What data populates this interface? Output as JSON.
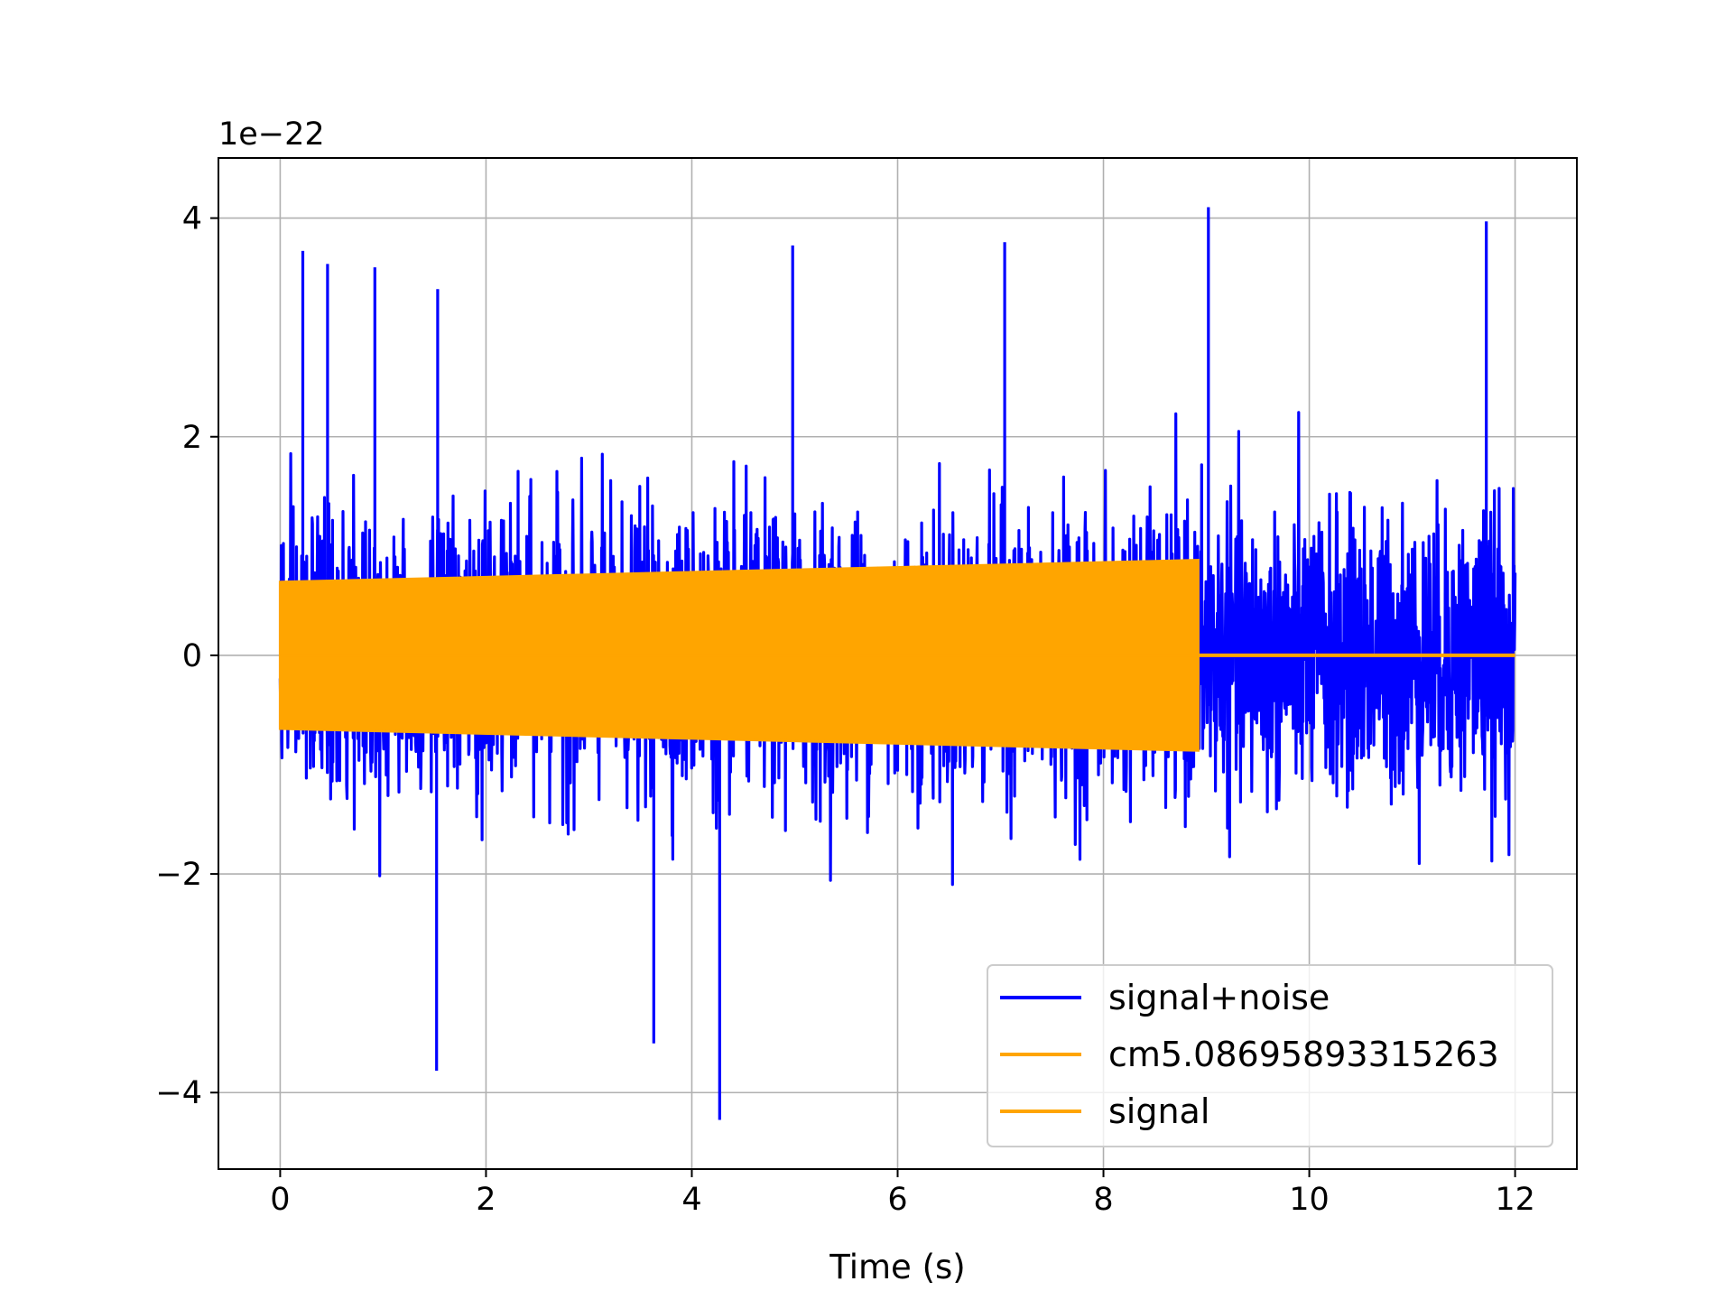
{
  "chart_data": {
    "type": "line",
    "title": "",
    "xlabel": "Time (s)",
    "ylabel": "",
    "y_offset_label": "1e−22",
    "y_scale_factor": 1e-22,
    "xlim": [
      -0.6,
      12.6
    ],
    "ylim": [
      -4.7,
      4.55
    ],
    "x_ticks": [
      0,
      2,
      4,
      6,
      8,
      10,
      12
    ],
    "x_tick_labels": [
      "0",
      "2",
      "4",
      "6",
      "8",
      "10",
      "12"
    ],
    "y_ticks": [
      -4,
      -2,
      0,
      2,
      4
    ],
    "y_tick_labels": [
      "−4",
      "−2",
      "0",
      "2",
      "4"
    ],
    "grid": true,
    "legend_position": "lower-right",
    "series": [
      {
        "name": "signal+noise",
        "color": "#0000ff",
        "description_kind": "noise",
        "x_range": [
          0,
          12
        ],
        "typical_amplitude": 1.6,
        "peak_max": 4.1,
        "peak_min": -4.25,
        "notable_peaks": [
          {
            "x": 0.22,
            "y": 3.7
          },
          {
            "x": 0.46,
            "y": 3.58
          },
          {
            "x": 0.92,
            "y": 3.55
          },
          {
            "x": 1.52,
            "y": -3.8
          },
          {
            "x": 1.53,
            "y": 3.35
          },
          {
            "x": 3.63,
            "y": -3.55
          },
          {
            "x": 4.27,
            "y": -4.25
          },
          {
            "x": 4.98,
            "y": 3.75
          },
          {
            "x": 7.04,
            "y": 3.78
          },
          {
            "x": 9.02,
            "y": 4.1
          },
          {
            "x": 11.72,
            "y": 3.97
          }
        ]
      },
      {
        "name": "cm5.08695893315263",
        "color": "#ffa500",
        "description_kind": "chirp",
        "x_range": [
          0,
          8.92
        ],
        "amplitude_start": 0.67,
        "amplitude_end": 0.87,
        "after_end_value": 0
      },
      {
        "name": "signal",
        "color": "#ffa500",
        "description_kind": "chirp",
        "x_range": [
          0,
          12
        ],
        "amplitude_start": 0.67,
        "amplitude_end": 0.87,
        "signal_end_x": 8.92,
        "after_end_value": 0
      }
    ]
  }
}
